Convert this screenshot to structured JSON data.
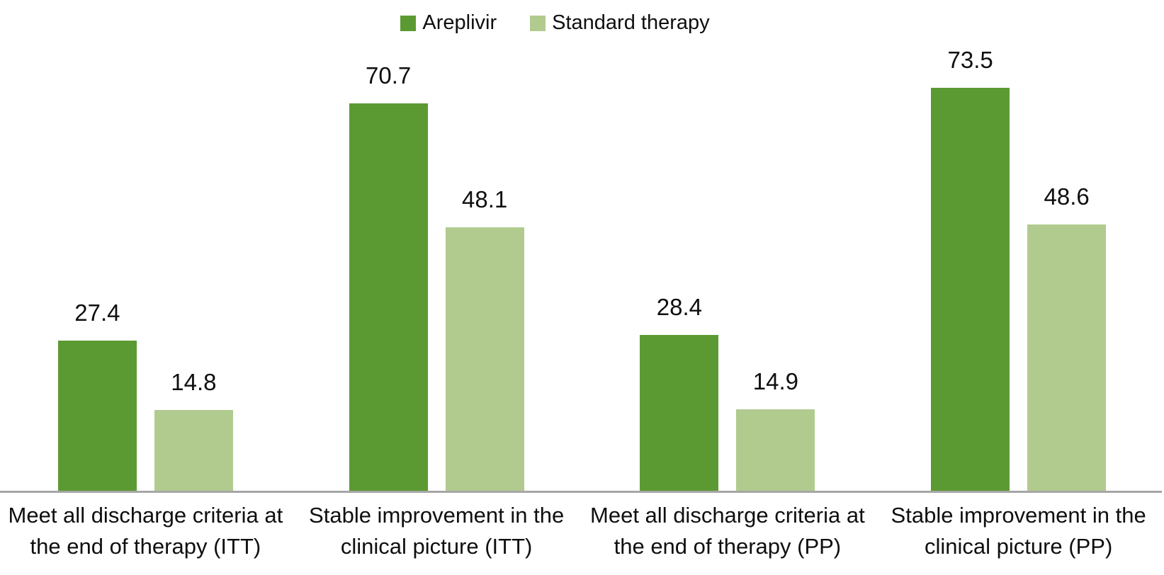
{
  "chart_data": {
    "type": "bar",
    "title": "",
    "categories": [
      "Meet all discharge criteria at the end of therapy (ITT)",
      "Stable improvement in the clinical picture (ITT)",
      "Meet all discharge criteria at the end of therapy (PP)",
      "Stable improvement in the clinical picture (PP)"
    ],
    "series": [
      {
        "name": "Areplivir",
        "color": "#5b9a32",
        "values": [
          27.4,
          70.7,
          28.4,
          73.5
        ]
      },
      {
        "name": "Standard therapy",
        "color": "#b1cb8f",
        "values": [
          14.8,
          48.1,
          14.9,
          48.6
        ]
      }
    ],
    "ylim": [
      0,
      80
    ],
    "grid": false,
    "legend_position": "top-center",
    "value_labels": "one-decimal",
    "axis_line_color": "#a6a6a6",
    "text_color": "#0f0f0f",
    "background": "#ffffff"
  }
}
